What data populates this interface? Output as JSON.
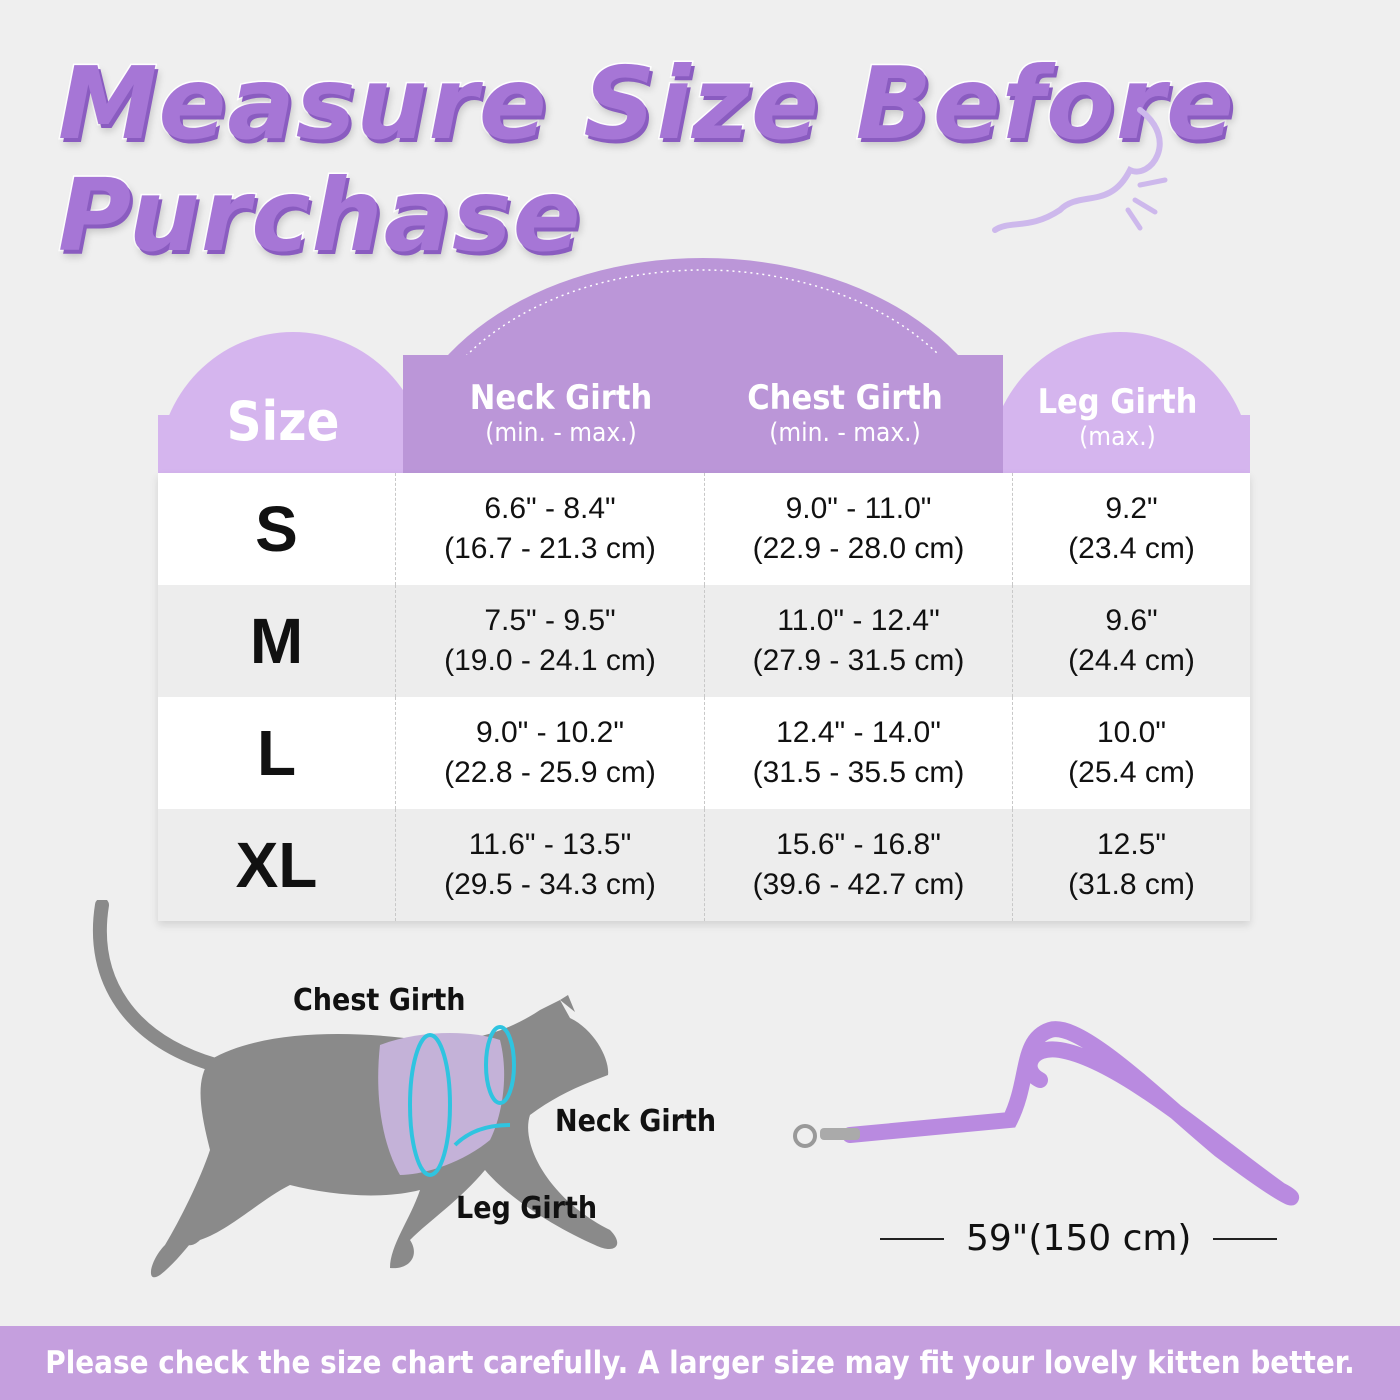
{
  "title": {
    "line1": "Measure Size Before",
    "line2": "Purchase"
  },
  "colors": {
    "accent": "#a676d6",
    "header_light": "#d5b5ee",
    "header_dark": "#bb96d8",
    "footer": "#c59fde",
    "cat": "#8a8a8a",
    "leash": "#b98ae0"
  },
  "table": {
    "headers": [
      {
        "main": "Size",
        "sub": ""
      },
      {
        "main": "Neck Girth",
        "sub": "(min. - max.)"
      },
      {
        "main": "Chest Girth",
        "sub": "(min. - max.)"
      },
      {
        "main": "Leg Girth",
        "sub": "(max.)"
      }
    ],
    "rows": [
      {
        "size": "S",
        "neck": [
          "6.6\" - 8.4\"",
          "(16.7 - 21.3 cm)"
        ],
        "chest": [
          "9.0\" - 11.0\"",
          "(22.9 - 28.0 cm)"
        ],
        "leg": [
          "9.2\"",
          "(23.4 cm)"
        ]
      },
      {
        "size": "M",
        "neck": [
          "7.5\" - 9.5\"",
          "(19.0 - 24.1 cm)"
        ],
        "chest": [
          "11.0\" - 12.4\"",
          "(27.9 - 31.5 cm)"
        ],
        "leg": [
          "9.6\"",
          "(24.4 cm)"
        ]
      },
      {
        "size": "L",
        "neck": [
          "9.0\" - 10.2\"",
          "(22.8 - 25.9 cm)"
        ],
        "chest": [
          "12.4\" - 14.0\"",
          "(31.5 - 35.5 cm)"
        ],
        "leg": [
          "10.0\"",
          "(25.4 cm)"
        ]
      },
      {
        "size": "XL",
        "neck": [
          "11.6\" - 13.5\"",
          "(29.5 - 34.3 cm)"
        ],
        "chest": [
          "15.6\" - 16.8\"",
          "(39.6 - 42.7 cm)"
        ],
        "leg": [
          "12.5\"",
          "(31.8 cm)"
        ]
      }
    ]
  },
  "diagram": {
    "chest_label": "Chest Girth",
    "neck_label": "Neck Girth",
    "leg_label": "Leg Girth"
  },
  "leash": {
    "length": "59\"(150 cm)"
  },
  "footer": {
    "text": "Please check the size chart carefully. A larger size may fit your lovely kitten better."
  }
}
